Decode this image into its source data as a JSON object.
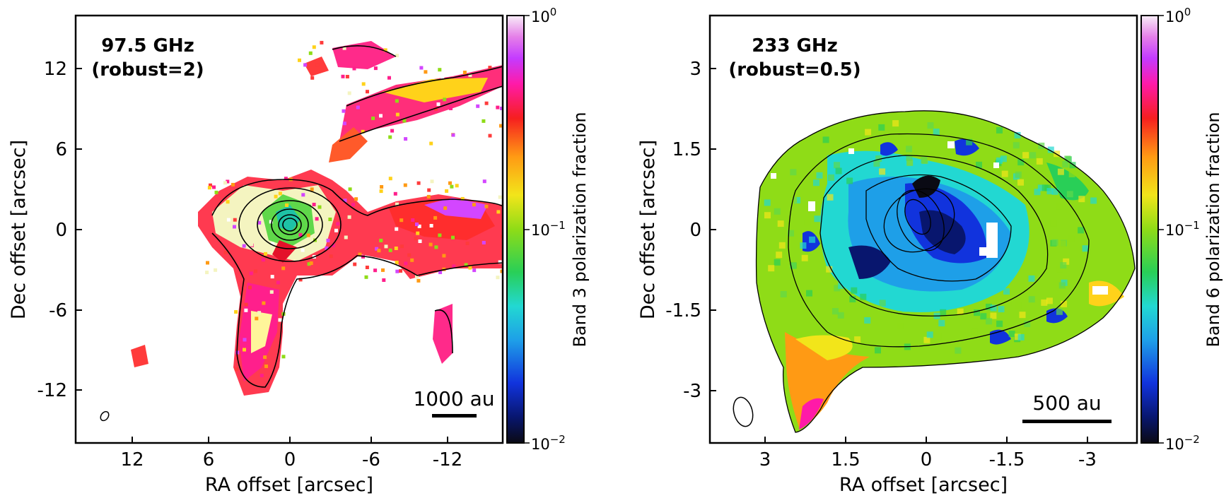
{
  "chart_data": [
    {
      "type": "heatmap",
      "panel": "left",
      "title_line1": "97.5 GHz",
      "title_line2": "(robust=2)",
      "xlabel": "RA offset [arcsec]",
      "ylabel": "Dec offset [arcsec]",
      "x_ticks": [
        "12",
        "6",
        "0",
        "-6",
        "-12"
      ],
      "y_ticks": [
        "12",
        "6",
        "0",
        "-6",
        "-12"
      ],
      "colorbar_label": "Band 3 polarization fraction",
      "colorbar_ticks": [
        "10",
        "10",
        "10"
      ],
      "colorbar_exponents": [
        "0",
        "−1",
        "−2"
      ],
      "scale_bar": "1000 au"
    },
    {
      "type": "heatmap",
      "panel": "right",
      "title_line1": "233 GHz",
      "title_line2": "(robust=0.5)",
      "xlabel": "RA offset [arcsec]",
      "ylabel": "Dec offset [arcsec]",
      "x_ticks": [
        "3",
        "1.5",
        "0",
        "-1.5",
        "-3"
      ],
      "y_ticks": [
        "3",
        "1.5",
        "0",
        "-1.5",
        "-3"
      ],
      "colorbar_label": "Band 6 polarization fraction",
      "colorbar_ticks": [
        "10",
        "10",
        "10"
      ],
      "colorbar_exponents": [
        "0",
        "−1",
        "−2"
      ],
      "scale_bar": "500 au"
    }
  ]
}
